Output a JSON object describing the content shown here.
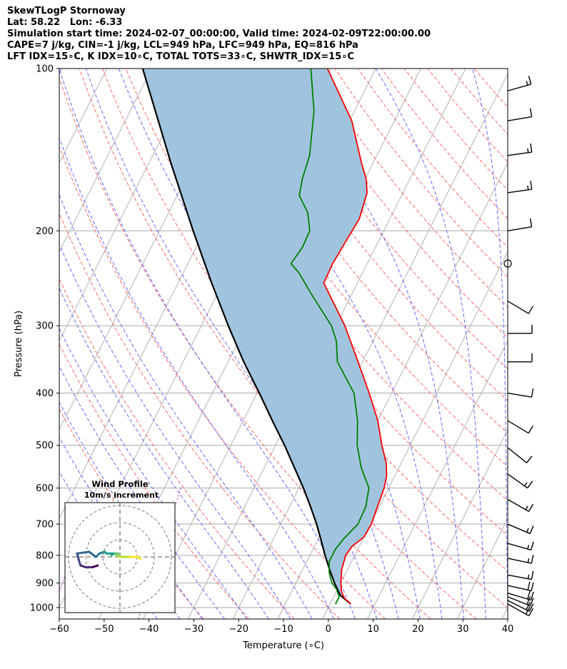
{
  "header": {
    "lines": [
      "SkewTLogP Stornoway",
      "Lat: 58.22   Lon: -6.33",
      "Simulation start time: 2024-02-07_00:00:00, Valid time: 2024-02-09T22:00:00.00",
      "CAPE=7 j/kg, CIN=-1 j/kg, LCL=949 hPa, LFC=949 hPa, EQ=816 hPa",
      "LFT IDX=15∘C, K IDX=10∘C, TOTAL TOTS=33∘C, SHWTR_IDX=15∘C"
    ]
  },
  "chart_data": {
    "type": "line",
    "subtype": "skew-t log-p",
    "xlabel": "Temperature (∘C)",
    "ylabel": "Pressure (hPa)",
    "xlim": [
      -60,
      40
    ],
    "ylim": [
      1050,
      100
    ],
    "x_ticks": [
      -60,
      -50,
      -40,
      -30,
      -20,
      -10,
      0,
      10,
      20,
      30,
      40
    ],
    "y_ticks": [
      100,
      200,
      300,
      400,
      500,
      600,
      700,
      800,
      900,
      1000
    ],
    "y_scale": "log",
    "grid": true,
    "colors": {
      "temperature": "#ff0000",
      "dewpoint": "#008000",
      "parcel": "#000000",
      "cape_shade": "#a1c4de",
      "dry_adiabats": "#ff6666",
      "moist_adiabats": "#6666ff",
      "mixing_ratio": "#9933cc",
      "isotherms": "#aaaaaa"
    },
    "series": [
      {
        "kind": "temperature",
        "points": [
          {
            "p": 985,
            "t": 4.6
          },
          {
            "p": 960,
            "t": 2.5
          },
          {
            "p": 935,
            "t": 1.2
          },
          {
            "p": 900,
            "t": 0.0
          },
          {
            "p": 850,
            "t": -1.3
          },
          {
            "p": 800,
            "t": -2.0
          },
          {
            "p": 770,
            "t": -1.6
          },
          {
            "p": 740,
            "t": 0.0
          },
          {
            "p": 700,
            "t": 0.2
          },
          {
            "p": 650,
            "t": -0.4
          },
          {
            "p": 600,
            "t": -1.0
          },
          {
            "p": 570,
            "t": -1.8
          },
          {
            "p": 540,
            "t": -3.3
          },
          {
            "p": 500,
            "t": -6.3
          },
          {
            "p": 450,
            "t": -10.0
          },
          {
            "p": 400,
            "t": -15.0
          },
          {
            "p": 350,
            "t": -21.0
          },
          {
            "p": 300,
            "t": -28.0
          },
          {
            "p": 250,
            "t": -37.5
          },
          {
            "p": 230,
            "t": -37.7
          },
          {
            "p": 210,
            "t": -37.3
          },
          {
            "p": 190,
            "t": -36.8
          },
          {
            "p": 170,
            "t": -38.0
          },
          {
            "p": 160,
            "t": -39.8
          },
          {
            "p": 150,
            "t": -42.5
          },
          {
            "p": 125,
            "t": -49.5
          },
          {
            "p": 100,
            "t": -60.8
          }
        ]
      },
      {
        "kind": "dewpoint",
        "points": [
          {
            "p": 985,
            "t": 1.2
          },
          {
            "p": 955,
            "t": 1.2
          },
          {
            "p": 925,
            "t": -0.2
          },
          {
            "p": 900,
            "t": -2.0
          },
          {
            "p": 860,
            "t": -3.8
          },
          {
            "p": 820,
            "t": -5.0
          },
          {
            "p": 780,
            "t": -5.0
          },
          {
            "p": 745,
            "t": -4.3
          },
          {
            "p": 700,
            "t": -2.8
          },
          {
            "p": 650,
            "t": -3.0
          },
          {
            "p": 600,
            "t": -4.4
          },
          {
            "p": 550,
            "t": -8.4
          },
          {
            "p": 500,
            "t": -11.8
          },
          {
            "p": 450,
            "t": -14.5
          },
          {
            "p": 400,
            "t": -18.4
          },
          {
            "p": 350,
            "t": -25.6
          },
          {
            "p": 320,
            "t": -28.2
          },
          {
            "p": 300,
            "t": -31.0
          },
          {
            "p": 260,
            "t": -39.5
          },
          {
            "p": 240,
            "t": -44.0
          },
          {
            "p": 230,
            "t": -47.0
          },
          {
            "p": 215,
            "t": -46.3
          },
          {
            "p": 200,
            "t": -46.5
          },
          {
            "p": 185,
            "t": -49.0
          },
          {
            "p": 172,
            "t": -52.8
          },
          {
            "p": 160,
            "t": -54.0
          },
          {
            "p": 145,
            "t": -55.0
          },
          {
            "p": 120,
            "t": -59.0
          },
          {
            "p": 100,
            "t": -64.5
          }
        ]
      },
      {
        "kind": "parcel",
        "points": [
          {
            "p": 985,
            "t": 4.6
          },
          {
            "p": 949,
            "t": 1.3
          },
          {
            "p": 900,
            "t": -1.4
          },
          {
            "p": 850,
            "t": -4.0
          },
          {
            "p": 800,
            "t": -6.6
          },
          {
            "p": 750,
            "t": -9.2
          },
          {
            "p": 700,
            "t": -12.0
          },
          {
            "p": 650,
            "t": -15.3
          },
          {
            "p": 600,
            "t": -19.0
          },
          {
            "p": 550,
            "t": -23.3
          },
          {
            "p": 500,
            "t": -28.0
          },
          {
            "p": 450,
            "t": -33.5
          },
          {
            "p": 400,
            "t": -39.5
          },
          {
            "p": 350,
            "t": -46.5
          },
          {
            "p": 300,
            "t": -54.0
          },
          {
            "p": 250,
            "t": -62.5
          },
          {
            "p": 200,
            "t": -72.5
          },
          {
            "p": 150,
            "t": -85.0
          },
          {
            "p": 100,
            "t": -102.0
          }
        ]
      }
    ],
    "wind_barbs": [
      {
        "p": 985,
        "u": -9,
        "v": 5
      },
      {
        "p": 970,
        "u": -10,
        "v": 5
      },
      {
        "p": 955,
        "u": -10,
        "v": 4
      },
      {
        "p": 940,
        "u": -10,
        "v": 3
      },
      {
        "p": 910,
        "u": -9,
        "v": 2
      },
      {
        "p": 870,
        "u": -8,
        "v": 1.5
      },
      {
        "p": 810,
        "u": -7,
        "v": 1.5
      },
      {
        "p": 760,
        "u": -7,
        "v": 2
      },
      {
        "p": 700,
        "u": -7,
        "v": 3
      },
      {
        "p": 630,
        "u": -7,
        "v": 4
      },
      {
        "p": 565,
        "u": -7,
        "v": 5
      },
      {
        "p": 505,
        "u": -5,
        "v": 4
      },
      {
        "p": 450,
        "u": -5,
        "v": 3
      },
      {
        "p": 400,
        "u": -6,
        "v": 1
      },
      {
        "p": 350,
        "u": -6,
        "v": 0
      },
      {
        "p": 310,
        "u": -6,
        "v": 0
      },
      {
        "p": 270,
        "u": -5,
        "v": 3
      },
      {
        "p": 230,
        "u": 0,
        "v": 0
      },
      {
        "p": 200,
        "u": -6,
        "v": -1
      },
      {
        "p": 170,
        "u": -7,
        "v": -1
      },
      {
        "p": 145,
        "u": -7,
        "v": -1
      },
      {
        "p": 125,
        "u": -6,
        "v": -1
      },
      {
        "p": 110,
        "u": -7,
        "v": -2
      }
    ],
    "hodograph": {
      "title": "Wind Profile",
      "subtitle": "10m/s increment",
      "rings": [
        10,
        20,
        30
      ],
      "points": [
        {
          "u": 12,
          "v": -1
        },
        {
          "u": 10,
          "v": 0
        },
        {
          "u": 5,
          "v": 0
        },
        {
          "u": 0,
          "v": 0
        },
        {
          "u": -2,
          "v": 0.5
        },
        {
          "u": -1,
          "v": 2
        },
        {
          "u": -3,
          "v": 2
        },
        {
          "u": -5,
          "v": 1
        },
        {
          "u": -4,
          "v": 2
        },
        {
          "u": -8,
          "v": 2
        },
        {
          "u": -9,
          "v": 3
        },
        {
          "u": -12,
          "v": 2
        },
        {
          "u": -14,
          "v": 0
        },
        {
          "u": -18,
          "v": 3
        },
        {
          "u": -25,
          "v": 2
        },
        {
          "u": -24,
          "v": -2
        },
        {
          "u": -23,
          "v": -5
        },
        {
          "u": -20,
          "v": -6
        },
        {
          "u": -16,
          "v": -6
        },
        {
          "u": -13,
          "v": -5
        }
      ]
    }
  }
}
